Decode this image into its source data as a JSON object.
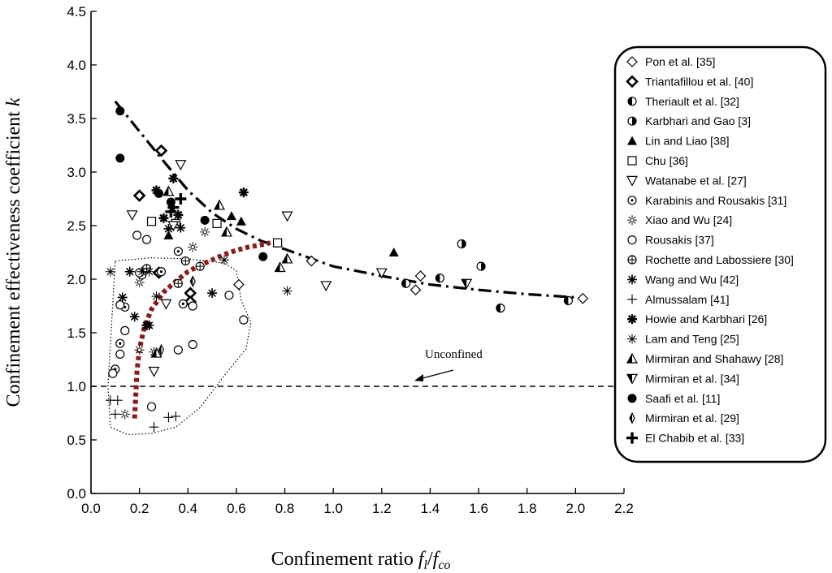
{
  "chart_data": {
    "type": "scatter",
    "xlabel": "Confinement ratio fl/fco",
    "ylabel": "Confinement effectiveness coefficient k",
    "xlim": [
      0,
      2.2
    ],
    "ylim": [
      0,
      4.5
    ],
    "x_ticks": [
      "0.0",
      "0.2",
      "0.4",
      "0.6",
      "0.8",
      "1.0",
      "1.2",
      "1.4",
      "1.6",
      "1.8",
      "2.0",
      "2.2"
    ],
    "y_ticks": [
      "0.0",
      "0.5",
      "1.0",
      "1.5",
      "2.0",
      "2.5",
      "3.0",
      "3.5",
      "4.0",
      "4.5"
    ],
    "grid": false,
    "legend_position": "right",
    "annotation": "Unconfined",
    "reference_line": {
      "name": "Unconfined",
      "y": 1.0
    },
    "trend_curves": {
      "dash_dot_black": {
        "x": [
          0.1,
          0.2,
          0.3,
          0.4,
          0.5,
          0.6,
          0.7,
          0.8,
          0.9,
          1.0,
          1.2,
          1.4,
          1.6,
          1.8,
          2.0
        ],
        "y": [
          3.66,
          3.38,
          3.1,
          2.83,
          2.62,
          2.47,
          2.36,
          2.28,
          2.2,
          2.12,
          2.03,
          1.95,
          1.9,
          1.86,
          1.83
        ]
      },
      "dotted_red": {
        "x": [
          0.18,
          0.19,
          0.2,
          0.22,
          0.25,
          0.3,
          0.35,
          0.4,
          0.45,
          0.5,
          0.55,
          0.6,
          0.65,
          0.7,
          0.74
        ],
        "y": [
          0.7,
          1.15,
          1.35,
          1.55,
          1.72,
          1.88,
          1.98,
          2.07,
          2.13,
          2.18,
          2.23,
          2.27,
          2.3,
          2.32,
          2.34
        ]
      },
      "dotted_envelope": {
        "x": [
          0.1,
          0.25,
          0.4,
          0.55,
          0.6,
          0.62,
          0.66,
          0.64,
          0.55,
          0.45,
          0.35,
          0.25,
          0.15,
          0.08,
          0.07,
          0.1
        ],
        "y": [
          2.17,
          2.2,
          2.19,
          2.15,
          2.08,
          1.8,
          1.6,
          1.35,
          1.1,
          0.8,
          0.62,
          0.56,
          0.55,
          0.62,
          1.0,
          2.17
        ]
      }
    },
    "series": [
      {
        "name": "Pon et al. [35]",
        "marker": "diamond-open",
        "x": [
          0.61,
          0.91,
          1.36,
          1.34,
          2.03
        ],
        "y": [
          1.95,
          2.17,
          2.03,
          1.9,
          1.82
        ]
      },
      {
        "name": "Triantafillou et al. [40]",
        "marker": "diamond-bold",
        "x": [
          0.29,
          0.2,
          0.28,
          0.41,
          0.41
        ],
        "y": [
          3.2,
          2.78,
          2.06,
          1.87,
          1.79
        ]
      },
      {
        "name": "Theriault et al. [32]",
        "marker": "halfcircle-left",
        "x": [
          1.3,
          1.44,
          1.69,
          1.97
        ],
        "y": [
          1.96,
          2.01,
          1.73,
          1.8
        ]
      },
      {
        "name": "Karbhari and Gao [3]",
        "marker": "halfcircle-right",
        "x": [
          1.53,
          1.61
        ],
        "y": [
          2.33,
          2.12
        ]
      },
      {
        "name": "Lin and Liao [38]",
        "marker": "triangle-filled",
        "x": [
          0.62,
          0.58,
          1.25,
          0.32
        ],
        "y": [
          2.54,
          2.59,
          2.25,
          2.41
        ]
      },
      {
        "name": "Chu [36]",
        "marker": "square-open",
        "x": [
          0.52,
          0.77,
          0.25,
          0.35
        ],
        "y": [
          2.52,
          2.34,
          2.54,
          2.52
        ]
      },
      {
        "name": "Watanabe et al. [27]",
        "marker": "triangle-down-open",
        "x": [
          0.37,
          0.17,
          0.81,
          0.97,
          1.2,
          0.34,
          0.31,
          0.26
        ],
        "y": [
          3.07,
          2.6,
          2.59,
          1.94,
          2.06,
          2.5,
          1.77,
          1.14
        ]
      },
      {
        "name": "Karabinis and  Rousakis [31]",
        "marker": "circle-dot",
        "x": [
          0.1,
          0.12,
          0.14,
          0.38,
          0.36,
          0.29,
          0.21
        ],
        "y": [
          1.16,
          1.4,
          1.74,
          1.77,
          2.26,
          2.07,
          2.04
        ]
      },
      {
        "name": "Xiao and Wu [24]",
        "marker": "sunburst",
        "x": [
          0.14,
          0.2,
          0.26,
          0.2,
          0.42,
          0.47
        ],
        "y": [
          0.74,
          1.34,
          1.32,
          1.97,
          2.3,
          2.44
        ]
      },
      {
        "name": "Rousakis [37]",
        "marker": "circle-open",
        "x": [
          0.09,
          0.12,
          0.14,
          0.12,
          0.2,
          0.23,
          0.25,
          0.36,
          0.42,
          0.42,
          0.63,
          0.57,
          0.19
        ],
        "y": [
          1.12,
          1.3,
          1.52,
          1.76,
          2.06,
          2.37,
          0.81,
          1.34,
          1.39,
          1.75,
          1.62,
          1.85,
          2.41
        ]
      },
      {
        "name": "Rochette and Labossiere [30]",
        "marker": "circle-plus",
        "x": [
          0.23,
          0.36,
          0.39,
          0.45
        ],
        "y": [
          2.1,
          1.96,
          2.17,
          2.12
        ]
      },
      {
        "name": "Wang and Wu  [42]",
        "marker": "asterisk",
        "x": [
          0.13,
          0.16,
          0.18,
          0.24,
          0.32,
          0.5,
          0.37
        ],
        "y": [
          1.83,
          2.07,
          1.65,
          1.57,
          2.47,
          1.87,
          2.48
        ]
      },
      {
        "name": "Almussalam [41]",
        "marker": "plus-thin",
        "x": [
          0.08,
          0.11,
          0.1,
          0.26,
          0.32,
          0.35
        ],
        "y": [
          0.87,
          0.87,
          0.74,
          0.62,
          0.71,
          0.72
        ]
      },
      {
        "name": "Howie and Karbhari  [26]",
        "marker": "asterisk-bold",
        "x": [
          0.63,
          0.27,
          0.34,
          0.36,
          0.23,
          0.3
        ],
        "y": [
          2.81,
          2.83,
          2.94,
          2.6,
          1.57,
          2.57
        ]
      },
      {
        "name": "Lam and Teng  [25]",
        "marker": "star-thin",
        "x": [
          0.08,
          0.21,
          0.24,
          0.27,
          0.81,
          0.55
        ],
        "y": [
          2.07,
          2.07,
          2.07,
          1.84,
          1.89,
          2.18
        ]
      },
      {
        "name": "Mirmiran and Shahawy  [28]",
        "marker": "triangle-half",
        "x": [
          0.53,
          0.56,
          0.78,
          0.81,
          0.32,
          0.27
        ],
        "y": [
          2.69,
          2.44,
          2.11,
          2.19,
          2.82,
          1.31
        ]
      },
      {
        "name": "Mirmiran et al. [34]",
        "marker": "triangle-down-half",
        "x": [
          1.55
        ],
        "y": [
          1.96
        ]
      },
      {
        "name": "Saafi et al. [11]",
        "marker": "circle-filled",
        "x": [
          0.12,
          0.12,
          0.28,
          0.33,
          0.47,
          0.71
        ],
        "y": [
          3.57,
          3.13,
          2.8,
          2.72,
          2.55,
          2.21
        ]
      },
      {
        "name": "Mirmiran  et al. [29]",
        "marker": "thin-diamond",
        "x": [
          0.42,
          0.29
        ],
        "y": [
          1.98,
          1.34
        ]
      },
      {
        "name": "El Chabib  et al. [33]",
        "marker": "plus-bold",
        "x": [
          0.34,
          0.37,
          0.33
        ],
        "y": [
          2.67,
          2.75,
          2.63
        ]
      }
    ]
  }
}
